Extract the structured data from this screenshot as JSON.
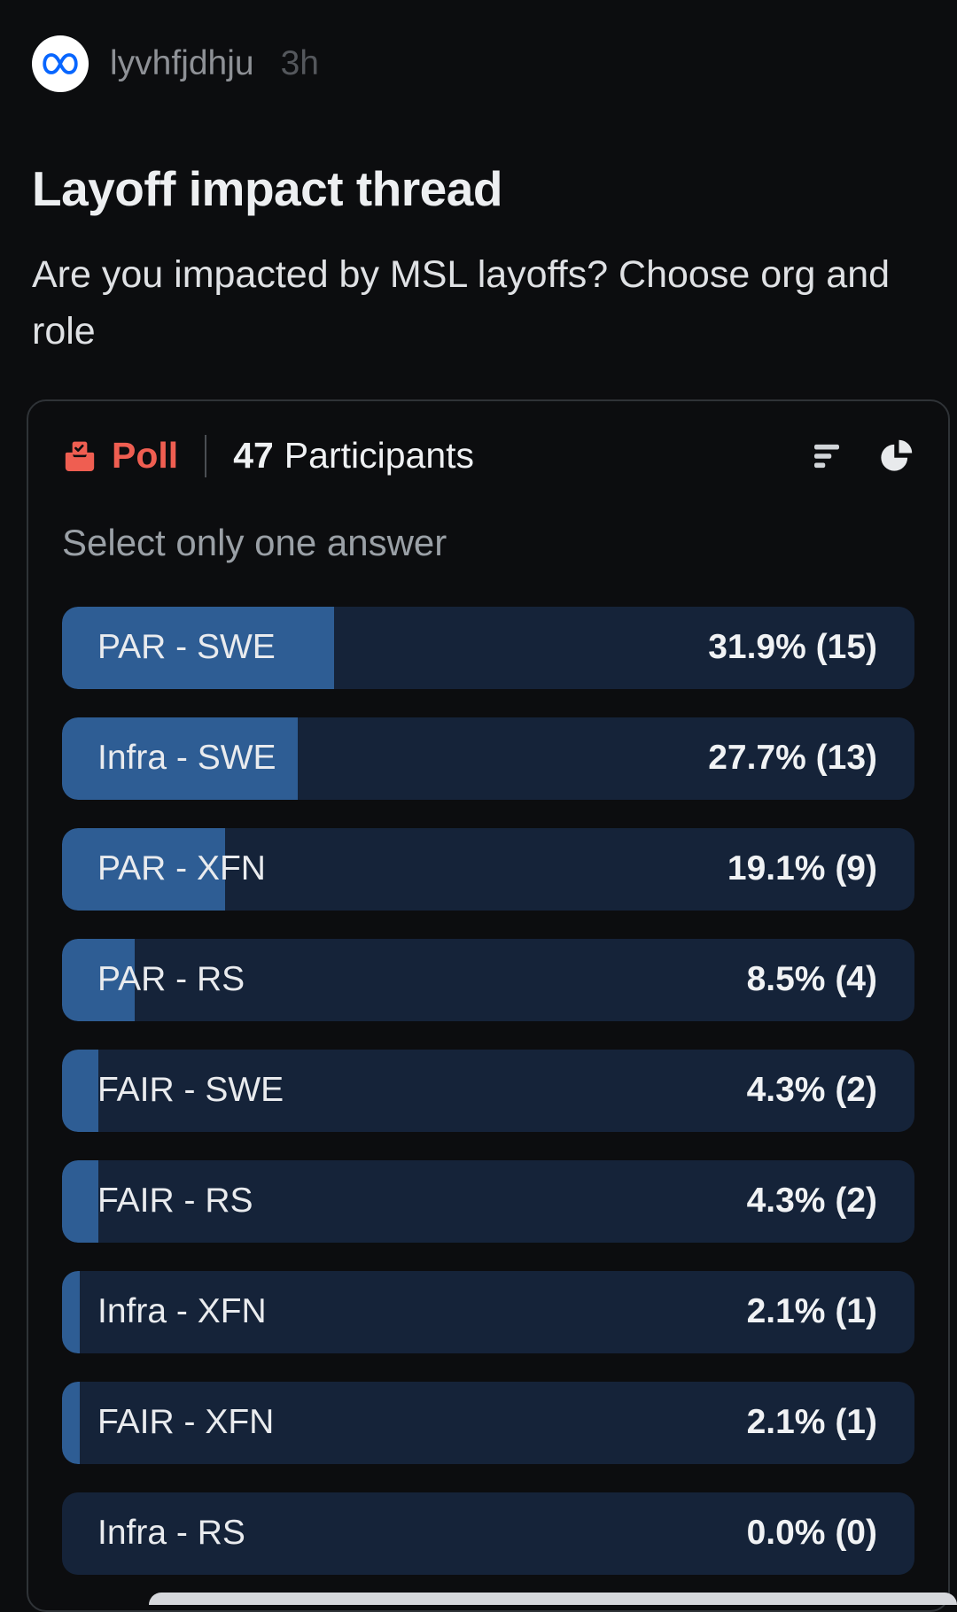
{
  "colors": {
    "page_bg": "#0c0d0f",
    "accent_red": "#ef5e51",
    "bar_bg": "#152339",
    "bar_fill": "#2e5d94"
  },
  "post": {
    "author": "lyvhfjdhju",
    "timestamp": "3h",
    "title": "Layoff impact thread",
    "body": "Are you impacted by MSL layoffs? Choose org and role"
  },
  "poll": {
    "label": "Poll",
    "participants_count": "47",
    "participants_label": "Participants",
    "instruction": "Select only one answer",
    "options": [
      {
        "label": "PAR - SWE",
        "result": "31.9% (15)",
        "percent": 31.9
      },
      {
        "label": "Infra - SWE",
        "result": "27.7% (13)",
        "percent": 27.7
      },
      {
        "label": "PAR - XFN",
        "result": "19.1% (9)",
        "percent": 19.1
      },
      {
        "label": "PAR - RS",
        "result": "8.5% (4)",
        "percent": 8.5
      },
      {
        "label": "FAIR - SWE",
        "result": "4.3% (2)",
        "percent": 4.3
      },
      {
        "label": "FAIR - RS",
        "result": "4.3% (2)",
        "percent": 4.3
      },
      {
        "label": "Infra - XFN",
        "result": "2.1% (1)",
        "percent": 2.1
      },
      {
        "label": "FAIR - XFN",
        "result": "2.1% (1)",
        "percent": 2.1
      },
      {
        "label": "Infra - RS",
        "result": "0.0% (0)",
        "percent": 0
      }
    ]
  },
  "chart_data": {
    "type": "bar",
    "title": "",
    "xlabel": "",
    "ylabel": "",
    "categories": [
      "PAR - SWE",
      "Infra - SWE",
      "PAR - XFN",
      "PAR - RS",
      "FAIR - SWE",
      "FAIR - RS",
      "Infra - XFN",
      "FAIR - XFN",
      "Infra - RS"
    ],
    "values": [
      15,
      13,
      9,
      4,
      2,
      2,
      1,
      1,
      0
    ],
    "percentages": [
      31.9,
      27.7,
      19.1,
      8.5,
      4.3,
      4.3,
      2.1,
      2.1,
      0.0
    ],
    "total_participants": 47
  }
}
